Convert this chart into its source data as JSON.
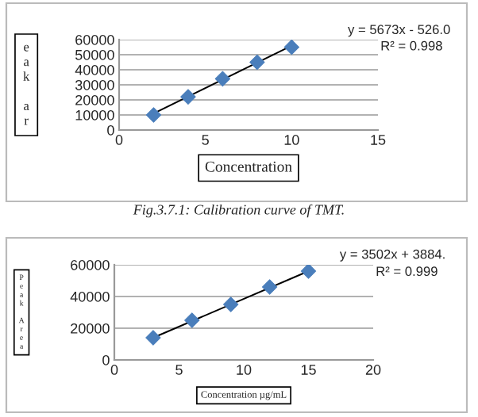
{
  "chart_data": [
    {
      "type": "scatter",
      "xlabel": "Concentration",
      "ylabel": "e\na\nk\n\na\nr",
      "x": [
        2,
        4,
        6,
        8,
        10
      ],
      "series": [
        {
          "color": "#4a7ebb",
          "values": [
            10000,
            22000,
            34000,
            45000,
            55000
          ],
          "marker": "diamond"
        },
        {
          "type": "line",
          "color": "#000000",
          "x": [
            2,
            10
          ],
          "values": [
            11000,
            56000
          ],
          "marker": "none"
        }
      ],
      "xlim": [
        0,
        15
      ],
      "xticks": [
        0,
        5,
        10,
        15
      ],
      "ylim": [
        0,
        60000
      ],
      "yticks": [
        0,
        10000,
        20000,
        30000,
        40000,
        50000,
        60000
      ],
      "grid": "y",
      "legend": false,
      "annotations": [
        "y = 5673x - 526.0",
        "R² = 0.998",
        "Fig.3.7.1: Calibration curve of TMT."
      ]
    },
    {
      "type": "scatter",
      "xlabel": "Concentration µg/mL",
      "ylabel": "P\ne\na\nk\n\nA\nr\ne\na",
      "x": [
        3,
        6,
        9,
        12,
        15
      ],
      "series": [
        {
          "color": "#4a7ebb",
          "values": [
            14000,
            25000,
            35000,
            46000,
            56000
          ],
          "marker": "diamond"
        },
        {
          "type": "line",
          "color": "#000000",
          "x": [
            3,
            15
          ],
          "values": [
            14000,
            56000
          ],
          "marker": "none"
        }
      ],
      "xlim": [
        0,
        20
      ],
      "xticks": [
        0,
        5,
        10,
        15,
        20
      ],
      "ylim": [
        0,
        60000
      ],
      "yticks": [
        0,
        20000,
        40000,
        60000
      ],
      "grid": "y",
      "legend": false,
      "annotations": [
        "y = 3502x + 3884.",
        "R² = 0.999"
      ]
    }
  ]
}
